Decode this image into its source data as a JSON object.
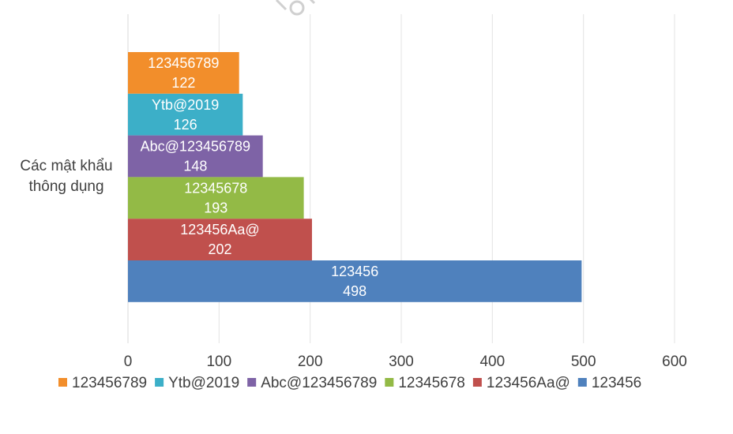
{
  "chart_data": {
    "type": "bar",
    "orientation": "horizontal",
    "category": "Các mật khẩu thông dụng",
    "category_lines": [
      "Các mật khẩu",
      "thông dụng"
    ],
    "series": [
      {
        "name": "123456789",
        "value": 122,
        "color": "#F28E2B"
      },
      {
        "name": "Ytb@2019",
        "value": 126,
        "color": "#3CAFC8"
      },
      {
        "name": "Abc@123456789",
        "value": 148,
        "color": "#7E63A6"
      },
      {
        "name": "12345678",
        "value": 193,
        "color": "#93BA46"
      },
      {
        "name": "123456Aa@",
        "value": 202,
        "color": "#C0504D"
      },
      {
        "name": "123456",
        "value": 498,
        "color": "#4F81BD"
      }
    ],
    "xlim": [
      0,
      600
    ],
    "xticks": [
      0,
      100,
      200,
      300,
      400,
      500,
      600
    ],
    "grid": true,
    "legend_position": "bottom"
  }
}
